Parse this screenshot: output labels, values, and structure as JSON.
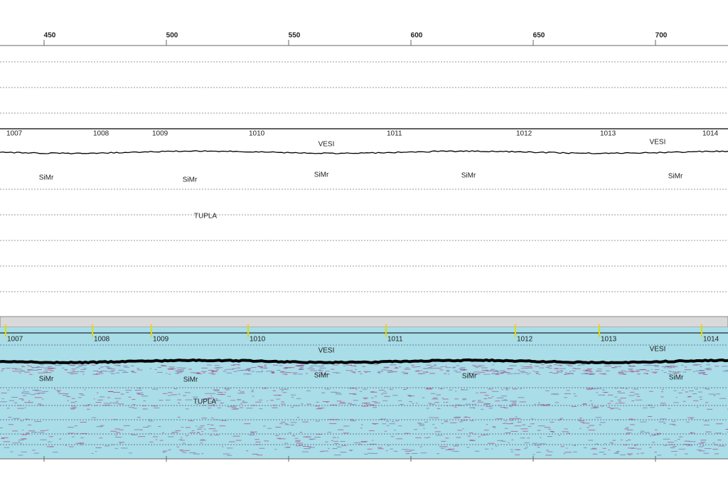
{
  "axis": {
    "ticks": [
      450,
      500,
      550,
      600,
      650,
      700
    ]
  },
  "fixes": [
    "1007",
    "1008",
    "1009",
    "1010",
    "1011",
    "1012",
    "1013",
    "1014"
  ],
  "layers": [
    "VESI",
    "VESI",
    "SiMr",
    "SiMr",
    "SiMr",
    "SiMr",
    "SiMr",
    "TUPLA"
  ]
}
